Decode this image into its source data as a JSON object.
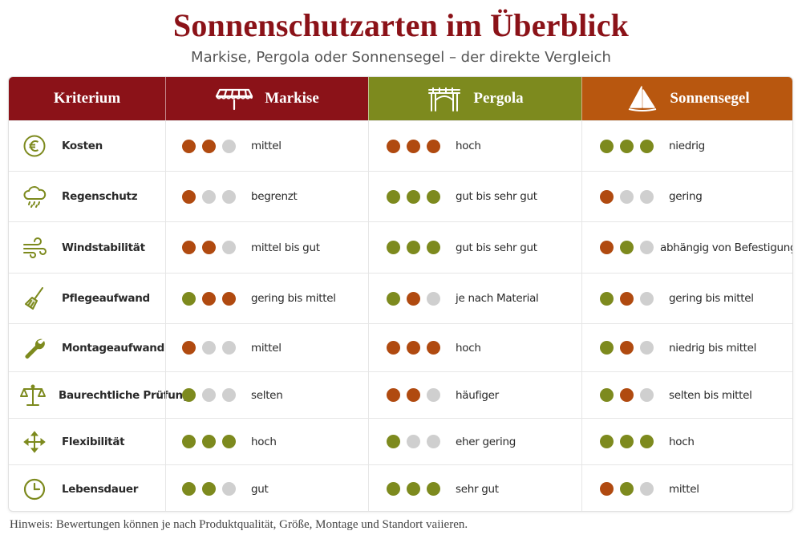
{
  "header": {
    "title": "Sonnenschutzarten im Überblick",
    "subtitle": "Markise, Pergola oder Sonnensegel – der direkte Vergleich"
  },
  "colors": {
    "dark_red": "#8b1218",
    "olive": "#7d8a1e",
    "orange": "#b8570f",
    "dot_green": "#7d8a1e",
    "dot_brown": "#b04a10",
    "dot_gray": "#cfcfcf"
  },
  "table": {
    "columns": {
      "criterion": "Kriterium",
      "markise": "Markise",
      "pergola": "Pergola",
      "sonnensegel": "Sonnensegel"
    },
    "column_icons": {
      "markise": "awning-icon",
      "pergola": "pergola-icon",
      "sonnensegel": "sail-icon"
    },
    "rows": [
      {
        "label": "Kosten",
        "icon": "euro-icon",
        "markise": {
          "dots": [
            "brown",
            "brown",
            "gray"
          ],
          "text": "mittel"
        },
        "pergola": {
          "dots": [
            "brown",
            "brown",
            "brown"
          ],
          "text": "hoch"
        },
        "sonnensegel": {
          "dots": [
            "green",
            "green",
            "green"
          ],
          "text": "niedrig"
        }
      },
      {
        "label": "Regenschutz",
        "icon": "rain-cloud-icon",
        "markise": {
          "dots": [
            "brown",
            "gray",
            "gray"
          ],
          "text": "begrenzt"
        },
        "pergola": {
          "dots": [
            "green",
            "green",
            "green"
          ],
          "text": "gut bis sehr gut"
        },
        "sonnensegel": {
          "dots": [
            "brown",
            "gray",
            "gray"
          ],
          "text": "gering"
        }
      },
      {
        "label": "Windstabilität",
        "icon": "wind-icon",
        "markise": {
          "dots": [
            "brown",
            "brown",
            "gray"
          ],
          "text": "mittel bis gut"
        },
        "pergola": {
          "dots": [
            "green",
            "green",
            "green"
          ],
          "text": "gut bis sehr gut"
        },
        "sonnensegel": {
          "dots": [
            "brown",
            "green",
            "gray"
          ],
          "text": "abhängig von Befestigung"
        }
      },
      {
        "label": "Pflegeaufwand",
        "icon": "broom-icon",
        "markise": {
          "dots": [
            "green",
            "brown",
            "brown"
          ],
          "text": "gering bis mittel"
        },
        "pergola": {
          "dots": [
            "green",
            "brown",
            "gray"
          ],
          "text": "je nach Material"
        },
        "sonnensegel": {
          "dots": [
            "green",
            "brown",
            "gray"
          ],
          "text": "gering bis mittel"
        }
      },
      {
        "label": "Montageaufwand",
        "icon": "wrench-icon",
        "markise": {
          "dots": [
            "brown",
            "gray",
            "gray"
          ],
          "text": "mittel"
        },
        "pergola": {
          "dots": [
            "brown",
            "brown",
            "brown"
          ],
          "text": "hoch"
        },
        "sonnensegel": {
          "dots": [
            "green",
            "brown",
            "gray"
          ],
          "text": "niedrig bis mittel"
        }
      },
      {
        "label": "Baurechtliche Prüfung",
        "icon": "scales-icon",
        "markise": {
          "dots": [
            "green",
            "gray",
            "gray"
          ],
          "text": "selten"
        },
        "pergola": {
          "dots": [
            "brown",
            "brown",
            "gray"
          ],
          "text": "häufiger"
        },
        "sonnensegel": {
          "dots": [
            "green",
            "brown",
            "gray"
          ],
          "text": "selten bis mittel"
        }
      },
      {
        "label": "Flexibilität",
        "icon": "move-arrows-icon",
        "markise": {
          "dots": [
            "green",
            "green",
            "green"
          ],
          "text": "hoch"
        },
        "pergola": {
          "dots": [
            "green",
            "gray",
            "gray"
          ],
          "text": "eher gering"
        },
        "sonnensegel": {
          "dots": [
            "green",
            "green",
            "green"
          ],
          "text": "hoch"
        }
      },
      {
        "label": "Lebensdauer",
        "icon": "clock-icon",
        "markise": {
          "dots": [
            "green",
            "green",
            "gray"
          ],
          "text": "gut"
        },
        "pergola": {
          "dots": [
            "green",
            "green",
            "green"
          ],
          "text": "sehr gut"
        },
        "sonnensegel": {
          "dots": [
            "brown",
            "green",
            "gray"
          ],
          "text": "mittel"
        }
      }
    ]
  },
  "footnote": "Hinweis: Bewertungen können je nach Produktqualität, Größe, Montage und Standort vaiieren."
}
